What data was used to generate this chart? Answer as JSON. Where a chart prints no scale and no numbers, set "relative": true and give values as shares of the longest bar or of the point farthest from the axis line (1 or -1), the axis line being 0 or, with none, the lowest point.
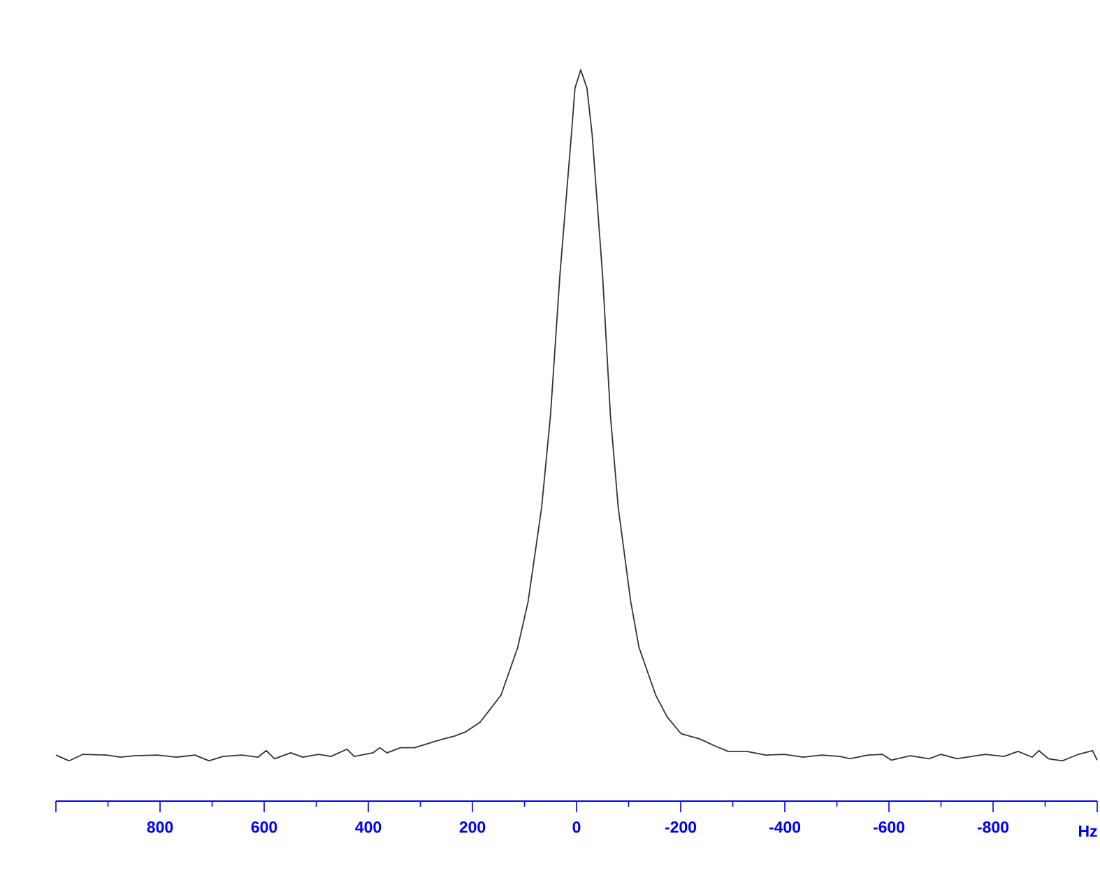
{
  "chart_data": {
    "type": "line",
    "relative": true,
    "xlabel": "Hz",
    "xlim": [
      1000,
      -1000
    ],
    "xticks": [
      {
        "value": 1000,
        "label": null
      },
      {
        "value": 900,
        "label": null
      },
      800,
      {
        "value": 700,
        "label": null
      },
      600,
      {
        "value": 500,
        "label": null
      },
      400,
      {
        "value": 300,
        "label": null
      },
      200,
      {
        "value": 100,
        "label": null
      },
      0,
      {
        "value": -100,
        "label": null
      },
      -200,
      {
        "value": -300,
        "label": null
      },
      -400,
      {
        "value": -500,
        "label": null
      },
      -600,
      {
        "value": -700,
        "label": null
      },
      -800,
      {
        "value": -900,
        "label": null
      },
      {
        "value": -1000,
        "label": null
      }
    ],
    "x": [
      1000,
      975,
      948,
      903,
      876,
      849,
      805,
      769,
      733,
      706,
      679,
      643,
      612,
      596,
      580,
      549,
      526,
      495,
      472,
      441,
      427,
      391,
      378,
      364,
      338,
      311,
      284,
      261,
      234,
      212,
      185,
      145,
      113,
      93,
      67,
      50,
      32,
      10,
      3,
      -8,
      -20,
      -30,
      -50,
      -65,
      -80,
      -104,
      -120,
      -152,
      -174,
      -201,
      -237,
      -264,
      -291,
      -327,
      -363,
      -399,
      -435,
      -471,
      -506,
      -525,
      -560,
      -587,
      -605,
      -641,
      -677,
      -700,
      -731,
      -758,
      -785,
      -821,
      -848,
      -875,
      -888,
      -906,
      -933,
      -964,
      -991,
      -1000
    ],
    "series": [
      {
        "color": "#333333",
        "values": [
          0.063,
          0.055,
          0.064,
          0.063,
          0.06,
          0.062,
          0.063,
          0.06,
          0.063,
          0.055,
          0.061,
          0.063,
          0.06,
          0.069,
          0.058,
          0.066,
          0.06,
          0.064,
          0.061,
          0.071,
          0.061,
          0.066,
          0.073,
          0.066,
          0.073,
          0.073,
          0.079,
          0.084,
          0.089,
          0.095,
          0.108,
          0.145,
          0.21,
          0.273,
          0.402,
          0.528,
          0.719,
          0.911,
          0.975,
          1.0,
          0.975,
          0.911,
          0.719,
          0.528,
          0.402,
          0.273,
          0.21,
          0.145,
          0.115,
          0.092,
          0.085,
          0.076,
          0.068,
          0.068,
          0.063,
          0.064,
          0.06,
          0.063,
          0.061,
          0.058,
          0.063,
          0.064,
          0.056,
          0.062,
          0.058,
          0.064,
          0.058,
          0.061,
          0.064,
          0.061,
          0.068,
          0.06,
          0.069,
          0.058,
          0.055,
          0.064,
          0.069,
          0.056
        ]
      }
    ]
  }
}
